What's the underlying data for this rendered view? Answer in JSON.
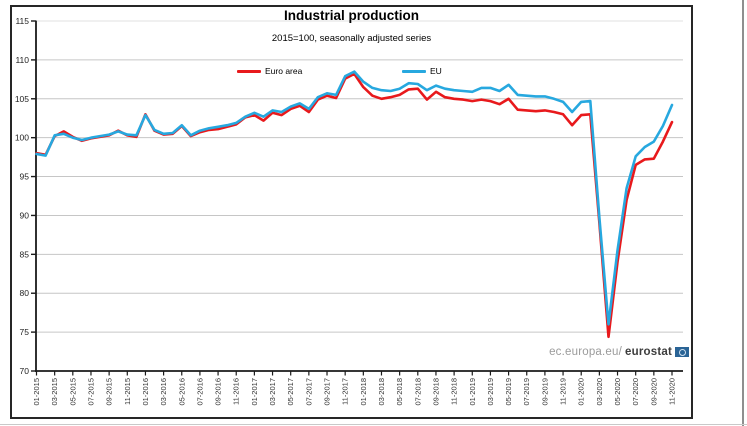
{
  "chart": {
    "title": "Industrial production",
    "subtitle": "2015=100, seasonally adjusted series",
    "legend": {
      "euro_area_label": "Euro area",
      "eu_label": "EU"
    },
    "watermark": {
      "prefix": "ec.europa.eu/",
      "brand": "eurostat"
    },
    "colors": {
      "euro_area": "#e8191c",
      "eu": "#27a8df",
      "grid": "#c6c6c6",
      "grid_top": "#e2e2e2",
      "axis": "#1a1a1a",
      "tick_text": "#222222",
      "frame": "#262626"
    }
  },
  "chart_data": {
    "type": "line",
    "title": "Industrial production",
    "subtitle": "2015=100, seasonally adjusted series",
    "ylim": [
      70,
      115
    ],
    "y_ticks": [
      70,
      75,
      80,
      85,
      90,
      95,
      100,
      105,
      110,
      115
    ],
    "grid": "horizontal",
    "legend_position": "top-center",
    "x": [
      "01-2015",
      "02-2015",
      "03-2015",
      "04-2015",
      "05-2015",
      "06-2015",
      "07-2015",
      "08-2015",
      "09-2015",
      "10-2015",
      "11-2015",
      "12-2015",
      "01-2016",
      "02-2016",
      "03-2016",
      "04-2016",
      "05-2016",
      "06-2016",
      "07-2016",
      "08-2016",
      "09-2016",
      "10-2016",
      "11-2016",
      "12-2016",
      "01-2017",
      "02-2017",
      "03-2017",
      "04-2017",
      "05-2017",
      "06-2017",
      "07-2017",
      "08-2017",
      "09-2017",
      "10-2017",
      "11-2017",
      "12-2017",
      "01-2018",
      "02-2018",
      "03-2018",
      "04-2018",
      "05-2018",
      "06-2018",
      "07-2018",
      "08-2018",
      "09-2018",
      "10-2018",
      "11-2018",
      "12-2018",
      "01-2019",
      "02-2019",
      "03-2019",
      "04-2019",
      "05-2019",
      "06-2019",
      "07-2019",
      "08-2019",
      "09-2019",
      "10-2019",
      "11-2019",
      "12-2019",
      "01-2020",
      "02-2020",
      "03-2020",
      "04-2020",
      "05-2020",
      "06-2020",
      "07-2020",
      "08-2020",
      "09-2020",
      "10-2020",
      "11-2020"
    ],
    "x_tick_labels": [
      "01-2015",
      "03-2015",
      "05-2015",
      "07-2015",
      "09-2015",
      "11-2015",
      "01-2016",
      "03-2016",
      "05-2016",
      "07-2016",
      "09-2016",
      "11-2016",
      "01-2017",
      "03-2017",
      "05-2017",
      "07-2017",
      "09-2017",
      "11-2017",
      "01-2018",
      "03-2018",
      "05-2018",
      "07-2018",
      "09-2018",
      "11-2018",
      "01-2019",
      "03-2019",
      "05-2019",
      "07-2019",
      "09-2019",
      "11-2019",
      "01-2020",
      "03-2020",
      "05-2020",
      "07-2020",
      "09-2020",
      "11-2020"
    ],
    "series": [
      {
        "name": "Euro area",
        "color": "#e8191c",
        "values": [
          98.0,
          97.8,
          100.2,
          100.8,
          100.1,
          99.6,
          99.9,
          100.1,
          100.3,
          100.9,
          100.3,
          100.1,
          103.0,
          100.9,
          100.4,
          100.5,
          101.5,
          100.2,
          100.7,
          101.0,
          101.1,
          101.4,
          101.7,
          102.6,
          102.9,
          102.2,
          103.2,
          102.9,
          103.7,
          104.1,
          103.3,
          104.9,
          105.4,
          105.1,
          107.6,
          108.2,
          106.5,
          105.4,
          105.0,
          105.2,
          105.5,
          106.2,
          106.3,
          104.9,
          105.9,
          105.2,
          105.0,
          104.9,
          104.7,
          104.9,
          104.7,
          104.3,
          105.0,
          103.6,
          103.5,
          103.4,
          103.5,
          103.3,
          103.0,
          101.6,
          102.9,
          103.0,
          89.0,
          74.4,
          84.0,
          92.0,
          96.5,
          97.2,
          97.3,
          99.5,
          102.0
        ]
      },
      {
        "name": "EU",
        "color": "#27a8df",
        "values": [
          97.9,
          97.7,
          100.3,
          100.5,
          100.0,
          99.7,
          100.0,
          100.2,
          100.4,
          100.8,
          100.4,
          100.3,
          102.9,
          101.0,
          100.5,
          100.6,
          101.6,
          100.3,
          100.9,
          101.2,
          101.4,
          101.6,
          101.9,
          102.7,
          103.2,
          102.7,
          103.5,
          103.3,
          104.0,
          104.4,
          103.7,
          105.2,
          105.7,
          105.5,
          107.9,
          108.5,
          107.2,
          106.4,
          106.1,
          106.0,
          106.3,
          107.0,
          106.9,
          106.1,
          106.7,
          106.3,
          106.1,
          106.0,
          105.9,
          106.4,
          106.4,
          106.0,
          106.8,
          105.5,
          105.4,
          105.3,
          105.3,
          105.0,
          104.6,
          103.3,
          104.6,
          104.7,
          89.7,
          76.0,
          85.5,
          93.5,
          97.6,
          98.8,
          99.5,
          101.5,
          104.2
        ]
      }
    ]
  }
}
